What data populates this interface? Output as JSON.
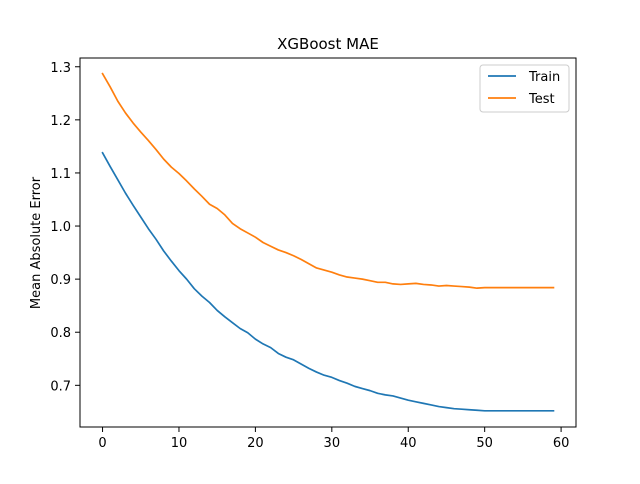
{
  "chart_data": {
    "type": "line",
    "title": "XGBoost MAE",
    "xlabel": "",
    "ylabel": "Mean Absolute Error",
    "xlim": [
      -2.95,
      61.95
    ],
    "ylim": [
      0.6215,
      1.3165
    ],
    "xticks": [
      0,
      10,
      20,
      30,
      40,
      50,
      60
    ],
    "yticks": [
      0.7,
      0.8,
      0.9,
      1.0,
      1.1,
      1.2,
      1.3
    ],
    "ytick_labels": [
      "0.7",
      "0.8",
      "0.9",
      "1.0",
      "1.1",
      "1.2",
      "1.3"
    ],
    "grid": false,
    "legend_position": "top-right",
    "x": [
      0,
      1,
      2,
      3,
      4,
      5,
      6,
      7,
      8,
      9,
      10,
      11,
      12,
      13,
      14,
      15,
      16,
      17,
      18,
      19,
      20,
      21,
      22,
      23,
      24,
      25,
      26,
      27,
      28,
      29,
      30,
      31,
      32,
      33,
      34,
      35,
      36,
      37,
      38,
      39,
      40,
      41,
      42,
      43,
      44,
      45,
      46,
      47,
      48,
      49,
      50,
      51,
      52,
      53,
      54,
      55,
      56,
      57,
      58,
      59
    ],
    "series": [
      {
        "name": "Train",
        "color": "#1f77b4",
        "values": [
          1.138,
          1.112,
          1.087,
          1.062,
          1.039,
          1.017,
          0.995,
          0.975,
          0.953,
          0.934,
          0.916,
          0.9,
          0.882,
          0.868,
          0.856,
          0.841,
          0.829,
          0.818,
          0.807,
          0.799,
          0.787,
          0.778,
          0.771,
          0.76,
          0.753,
          0.748,
          0.74,
          0.732,
          0.725,
          0.719,
          0.715,
          0.709,
          0.704,
          0.698,
          0.694,
          0.69,
          0.685,
          0.682,
          0.68,
          0.676,
          0.672,
          0.669,
          0.666,
          0.663,
          0.66,
          0.658,
          0.656,
          0.655,
          0.654,
          0.653,
          0.652,
          0.652,
          0.652,
          0.652,
          0.652,
          0.652,
          0.652,
          0.652,
          0.652,
          0.652
        ]
      },
      {
        "name": "Test",
        "color": "#ff7f0e",
        "values": [
          1.287,
          1.262,
          1.235,
          1.213,
          1.194,
          1.177,
          1.161,
          1.144,
          1.126,
          1.111,
          1.099,
          1.085,
          1.07,
          1.056,
          1.041,
          1.033,
          1.021,
          1.005,
          0.995,
          0.987,
          0.979,
          0.969,
          0.962,
          0.955,
          0.95,
          0.944,
          0.937,
          0.929,
          0.921,
          0.917,
          0.913,
          0.908,
          0.904,
          0.902,
          0.9,
          0.897,
          0.894,
          0.894,
          0.891,
          0.89,
          0.891,
          0.892,
          0.89,
          0.889,
          0.887,
          0.888,
          0.887,
          0.886,
          0.885,
          0.883,
          0.884,
          0.884,
          0.884,
          0.884,
          0.884,
          0.884,
          0.884,
          0.884,
          0.884,
          0.884
        ]
      }
    ]
  }
}
